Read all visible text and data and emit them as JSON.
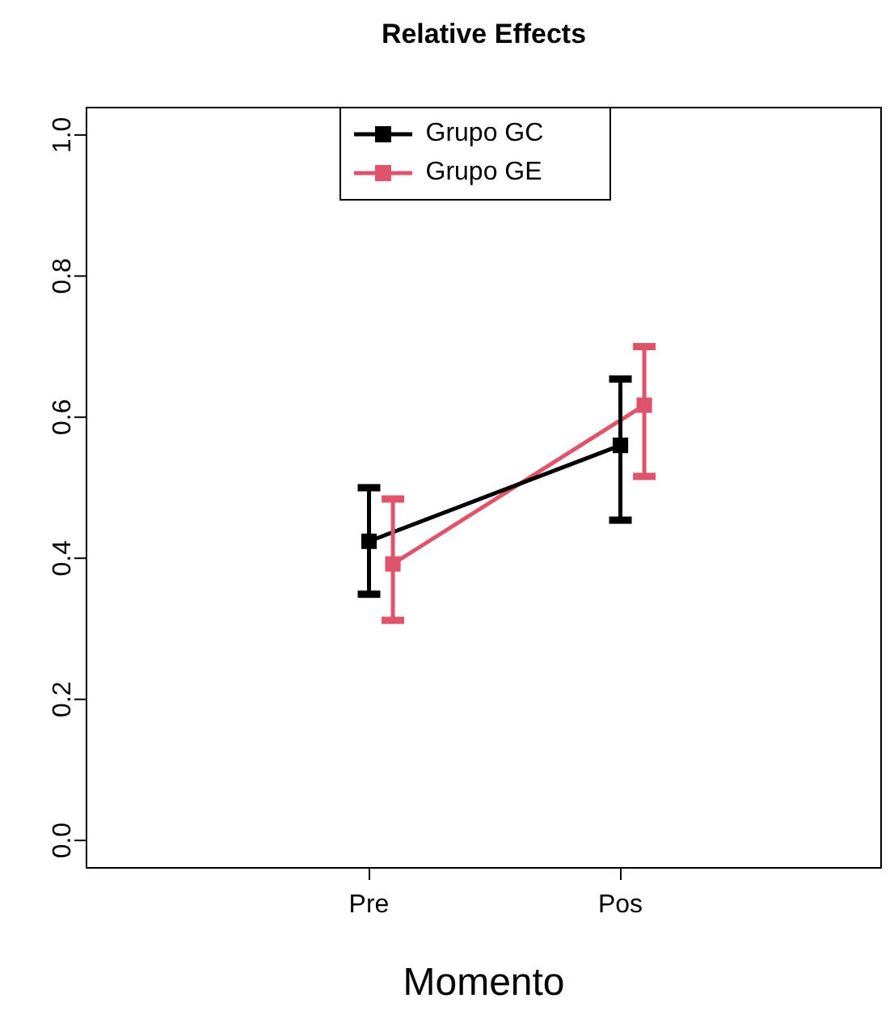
{
  "chart_data": {
    "type": "line",
    "title": "Relative Effects",
    "xlabel": "Momento",
    "categories": [
      "Pre",
      "Pos"
    ],
    "series": [
      {
        "name": "Grupo GC",
        "color": "#000000",
        "values": [
          0.424,
          0.56
        ],
        "errors": [
          [
            0.349,
            0.5
          ],
          [
            0.454,
            0.654
          ]
        ]
      },
      {
        "name": "Grupo GE",
        "color": "#df536b",
        "values": [
          0.392,
          0.617
        ],
        "errors": [
          [
            0.312,
            0.484
          ],
          [
            0.516,
            0.7
          ]
        ]
      }
    ],
    "ylim": [
      -0.04,
      1.04
    ],
    "yticks": [
      {
        "value": 0,
        "label": "0.0"
      },
      {
        "value": 0.2,
        "label": "0.2"
      },
      {
        "value": 0.4,
        "label": "0.4"
      },
      {
        "value": 0.6,
        "label": "0.6"
      },
      {
        "value": 0.8,
        "label": "0.8"
      },
      {
        "value": 1,
        "label": "1.0"
      }
    ],
    "grid": false,
    "legend": "top",
    "marker": "square",
    "line_style": "solid"
  }
}
